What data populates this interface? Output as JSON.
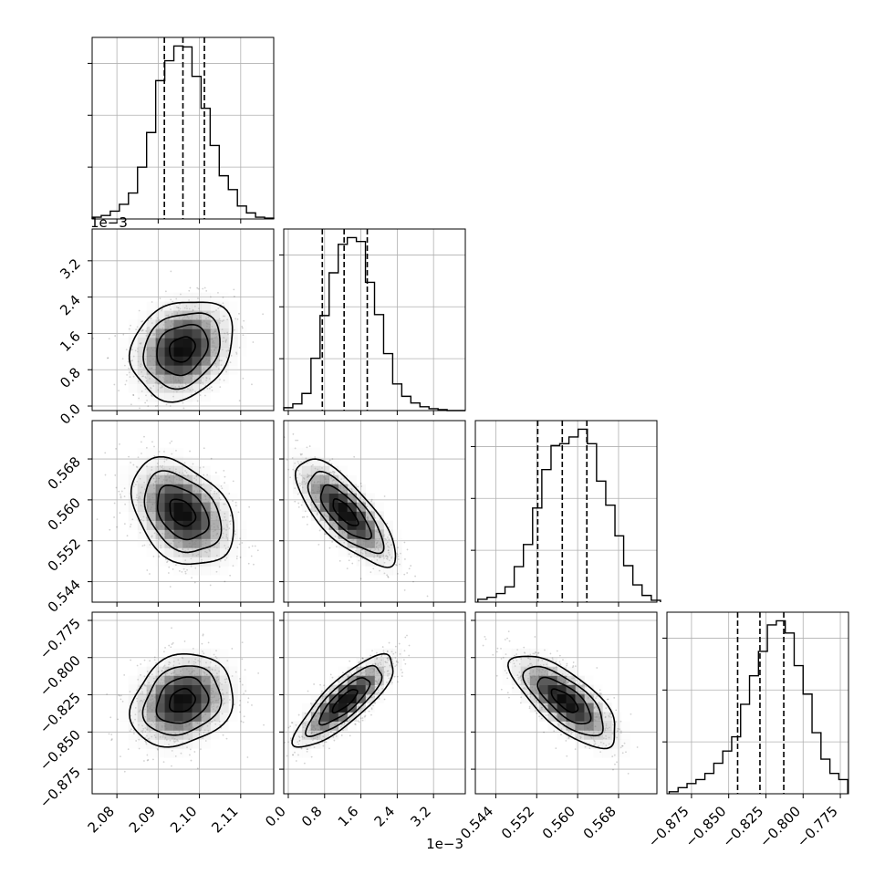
{
  "chart_data": {
    "type": "corner",
    "parameters": [
      {
        "range": [
          2.074,
          2.118
        ],
        "ticks": [
          2.08,
          2.09,
          2.1,
          2.11
        ],
        "tick_labels": [
          "2.08",
          "2.09",
          "2.10",
          "2.11"
        ],
        "offset_text": ""
      },
      {
        "range": [
          -0.1,
          3.9
        ],
        "ticks": [
          0.0,
          0.8,
          1.6,
          2.4,
          3.2
        ],
        "tick_labels": [
          "0.0",
          "0.8",
          "1.6",
          "2.4",
          "3.2"
        ],
        "offset_text": "1e−3"
      },
      {
        "range": [
          0.54,
          0.5755
        ],
        "ticks": [
          0.544,
          0.552,
          0.56,
          0.568
        ],
        "tick_labels": [
          "0.544",
          "0.552",
          "0.560",
          "0.568"
        ],
        "offset_text": ""
      },
      {
        "range": [
          -0.8915,
          -0.7695
        ],
        "ticks": [
          -0.875,
          -0.85,
          -0.825,
          -0.8,
          -0.775
        ],
        "tick_labels": [
          "−0.875",
          "−0.850",
          "−0.825",
          "−0.800",
          "−0.775"
        ],
        "offset_text": ""
      }
    ],
    "marginals": [
      {
        "bin_edges": [
          2.074,
          2.0762,
          2.0784,
          2.0806,
          2.0828,
          2.085,
          2.0872,
          2.0894,
          2.0916,
          2.0938,
          2.096,
          2.0982,
          2.1004,
          2.1026,
          2.1048,
          2.107,
          2.1092,
          2.1114,
          2.1136,
          2.1158,
          2.118
        ],
        "counts": [
          2,
          4,
          9,
          17,
          30,
          60,
          100,
          160,
          183,
          200,
          199,
          165,
          128,
          85,
          50,
          34,
          15,
          7,
          2,
          1
        ],
        "quantiles": [
          2.0915,
          2.096,
          2.1012
        ]
      },
      {
        "bin_edges": [
          -0.1,
          0.1,
          0.3,
          0.5,
          0.7,
          0.9,
          1.1,
          1.3,
          1.5,
          1.7,
          1.9,
          2.1,
          2.3,
          2.5,
          2.7,
          2.9,
          3.1,
          3.3,
          3.5,
          3.7,
          3.9
        ],
        "counts": [
          3,
          7,
          18,
          55,
          100,
          145,
          175,
          182,
          178,
          135,
          101,
          60,
          28,
          15,
          8,
          4,
          2,
          1,
          0,
          0
        ],
        "quantiles": [
          0.75,
          1.23,
          1.74
        ]
      },
      {
        "bin_edges": [
          0.5405,
          0.5423,
          0.5441,
          0.5458,
          0.5476,
          0.5494,
          0.5512,
          0.553,
          0.5548,
          0.5565,
          0.5583,
          0.5601,
          0.5619,
          0.5637,
          0.5655,
          0.5673,
          0.569,
          0.5708,
          0.5726,
          0.5744,
          0.5762
        ],
        "counts": [
          3,
          5,
          9,
          16,
          37,
          60,
          98,
          138,
          163,
          165,
          172,
          180,
          165,
          126,
          101,
          69,
          38,
          18,
          7,
          2
        ],
        "quantiles": [
          0.5522,
          0.557,
          0.5618
        ]
      },
      {
        "bin_edges": [
          -0.89,
          -0.884,
          -0.878,
          -0.872,
          -0.866,
          -0.86,
          -0.854,
          -0.848,
          -0.842,
          -0.836,
          -0.83,
          -0.824,
          -0.818,
          -0.812,
          -0.806,
          -0.8,
          -0.794,
          -0.788,
          -0.782,
          -0.776,
          -0.77
        ],
        "counts": [
          1,
          3,
          5,
          7,
          10,
          15,
          21,
          28,
          44,
          58,
          70,
          83,
          85,
          79,
          63,
          49,
          30,
          17,
          10,
          7
        ],
        "quantiles": [
          -0.844,
          -0.829,
          -0.813
        ]
      }
    ],
    "joint": [
      {
        "row": 1,
        "col": 0,
        "mean": [
          2.0958,
          1.25
        ],
        "sd": [
          0.0062,
          0.55
        ],
        "rho": 0.2
      },
      {
        "row": 2,
        "col": 0,
        "mean": [
          2.0958,
          0.5575
        ],
        "sd": [
          0.0062,
          0.0052
        ],
        "rho": -0.35
      },
      {
        "row": 2,
        "col": 1,
        "mean": [
          1.25,
          0.5575
        ],
        "sd": [
          0.55,
          0.0052
        ],
        "rho": -0.75
      },
      {
        "row": 3,
        "col": 0,
        "mean": [
          2.0958,
          -0.829
        ],
        "sd": [
          0.0062,
          0.0155
        ],
        "rho": 0.2
      },
      {
        "row": 3,
        "col": 1,
        "mean": [
          1.25,
          -0.829
        ],
        "sd": [
          0.55,
          0.0155
        ],
        "rho": 0.82
      },
      {
        "row": 3,
        "col": 2,
        "mean": [
          0.5575,
          -0.829
        ],
        "sd": [
          0.0052,
          0.0155
        ],
        "rho": -0.72
      }
    ],
    "contour_levels": [
      0.5,
      1.0,
      1.5,
      2.0
    ],
    "grid": true,
    "colors": {
      "ink": "#000000",
      "grid": "#b0b0b0",
      "scatter": "#000000"
    }
  }
}
